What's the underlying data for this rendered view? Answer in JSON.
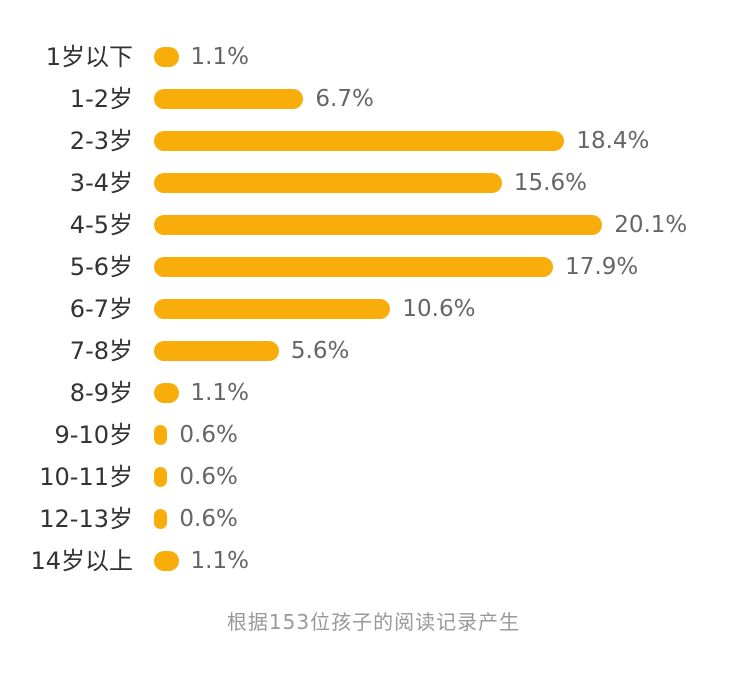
{
  "chart_data": {
    "type": "bar",
    "orientation": "horizontal",
    "title": "",
    "xlabel": "",
    "ylabel": "",
    "categories": [
      "1岁以下",
      "1-2岁",
      "2-3岁",
      "3-4岁",
      "4-5岁",
      "5-6岁",
      "6-7岁",
      "7-8岁",
      "8-9岁",
      "9-10岁",
      "10-11岁",
      "12-13岁",
      "14岁以上"
    ],
    "values": [
      1.1,
      6.7,
      18.4,
      15.6,
      20.1,
      17.9,
      10.6,
      5.6,
      1.1,
      0.6,
      0.6,
      0.6,
      1.1
    ],
    "value_labels": [
      "1.1%",
      "6.7%",
      "18.4%",
      "15.6%",
      "20.1%",
      "17.9%",
      "10.6%",
      "5.6%",
      "1.1%",
      "0.6%",
      "0.6%",
      "0.6%",
      "1.1%"
    ],
    "unit": "%",
    "grid": false,
    "legend": null,
    "bar_color": "#f9ad0b",
    "footnote": "根据153位孩子的阅读记录产生"
  },
  "rows": [
    {
      "label": "1岁以下",
      "value": 1.1,
      "value_label": "1.1%"
    },
    {
      "label": "1-2岁",
      "value": 6.7,
      "value_label": "6.7%"
    },
    {
      "label": "2-3岁",
      "value": 18.4,
      "value_label": "18.4%"
    },
    {
      "label": "3-4岁",
      "value": 15.6,
      "value_label": "15.6%"
    },
    {
      "label": "4-5岁",
      "value": 20.1,
      "value_label": "20.1%"
    },
    {
      "label": "5-6岁",
      "value": 17.9,
      "value_label": "17.9%"
    },
    {
      "label": "6-7岁",
      "value": 10.6,
      "value_label": "10.6%"
    },
    {
      "label": "7-8岁",
      "value": 5.6,
      "value_label": "5.6%"
    },
    {
      "label": "8-9岁",
      "value": 1.1,
      "value_label": "1.1%"
    },
    {
      "label": "9-10岁",
      "value": 0.6,
      "value_label": "0.6%"
    },
    {
      "label": "10-11岁",
      "value": 0.6,
      "value_label": "0.6%"
    },
    {
      "label": "12-13岁",
      "value": 0.6,
      "value_label": "0.6%"
    },
    {
      "label": "14岁以上",
      "value": 1.1,
      "value_label": "1.1%"
    }
  ],
  "footnote": "根据153位孩子的阅读记录产生",
  "colors": {
    "bar": "#f9ad0b",
    "label": "#333333",
    "value": "#666666",
    "footnote": "#999999"
  }
}
